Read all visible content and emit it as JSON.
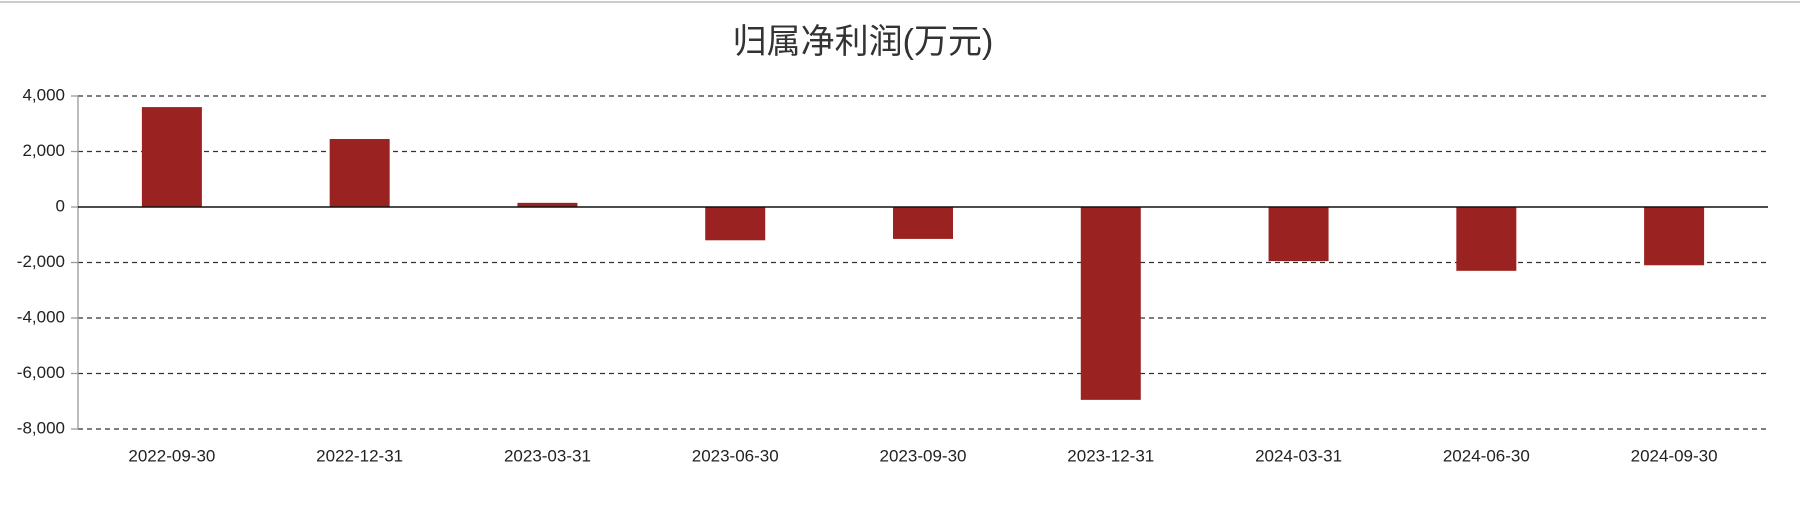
{
  "chart_data": {
    "type": "bar",
    "title": "归属净利润(万元)",
    "categories": [
      "2022-09-30",
      "2022-12-31",
      "2023-03-31",
      "2023-06-30",
      "2023-09-30",
      "2023-12-31",
      "2024-03-31",
      "2024-06-30",
      "2024-09-30"
    ],
    "values": [
      3600,
      2450,
      150,
      -1200,
      -1150,
      -6950,
      -1950,
      -2300,
      -2100
    ],
    "color": "#9a2220",
    "ylim": [
      -8000,
      4000
    ],
    "yticks": [
      {
        "value": -8000,
        "label": "-8,000"
      },
      {
        "value": -6000,
        "label": "-6,000"
      },
      {
        "value": -4000,
        "label": "-4,000"
      },
      {
        "value": -2000,
        "label": "-2,000"
      },
      0,
      {
        "value": 2000,
        "label": "2,000"
      },
      {
        "value": 4000,
        "label": "4,000"
      }
    ],
    "grid": true
  }
}
